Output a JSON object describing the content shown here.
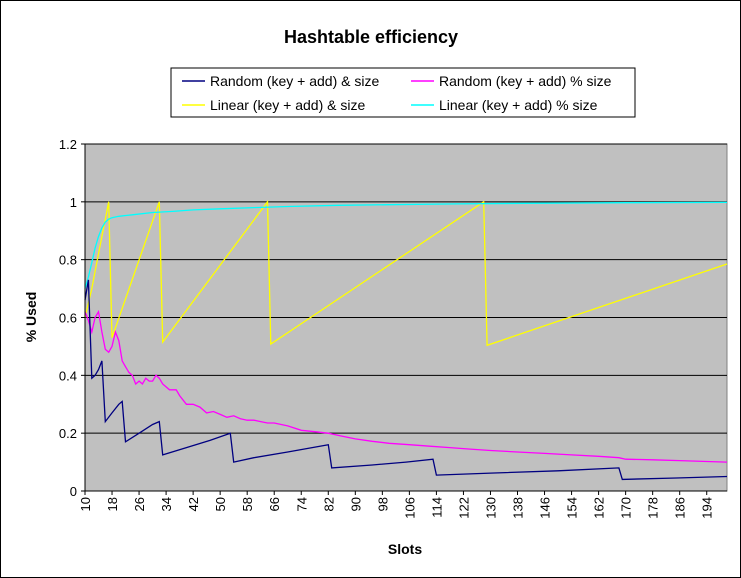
{
  "chart_data": {
    "type": "line",
    "title": "Hashtable efficiency",
    "xlabel": "Slots",
    "ylabel": "% Used",
    "ylim": [
      0,
      1.2
    ],
    "y_ticks": [
      "0",
      "0.2",
      "0.4",
      "0.6",
      "0.8",
      "1",
      "1.2"
    ],
    "x_range": [
      10,
      200
    ],
    "x_ticks": [
      "10",
      "18",
      "26",
      "34",
      "42",
      "50",
      "58",
      "66",
      "74",
      "82",
      "90",
      "98",
      "106",
      "114",
      "122",
      "130",
      "138",
      "146",
      "154",
      "162",
      "170",
      "178",
      "186",
      "194"
    ],
    "grid": "horizontal",
    "legend_position": "top",
    "plot_background": "#c0c0c0",
    "series": [
      {
        "name": "Random (key + add) & size",
        "color": "#000080",
        "points": [
          [
            10,
            0.66
          ],
          [
            11,
            0.73
          ],
          [
            12,
            0.39
          ],
          [
            13,
            0.4
          ],
          [
            14,
            0.42
          ],
          [
            15,
            0.45
          ],
          [
            16,
            0.24
          ],
          [
            18,
            0.27
          ],
          [
            20,
            0.3
          ],
          [
            21,
            0.31
          ],
          [
            22,
            0.17
          ],
          [
            26,
            0.2
          ],
          [
            30,
            0.23
          ],
          [
            32,
            0.24
          ],
          [
            33,
            0.125
          ],
          [
            40,
            0.15
          ],
          [
            47,
            0.175
          ],
          [
            53,
            0.2
          ],
          [
            54,
            0.1
          ],
          [
            60,
            0.115
          ],
          [
            70,
            0.135
          ],
          [
            82,
            0.16
          ],
          [
            83,
            0.08
          ],
          [
            95,
            0.09
          ],
          [
            105,
            0.1
          ],
          [
            113,
            0.11
          ],
          [
            114,
            0.055
          ],
          [
            130,
            0.062
          ],
          [
            150,
            0.07
          ],
          [
            168,
            0.08
          ],
          [
            169,
            0.04
          ],
          [
            185,
            0.045
          ],
          [
            200,
            0.05
          ]
        ]
      },
      {
        "name": "Random (key + add) % size",
        "color": "#ff00ff",
        "points": [
          [
            10,
            0.62
          ],
          [
            11,
            0.59
          ],
          [
            12,
            0.55
          ],
          [
            13,
            0.6
          ],
          [
            14,
            0.62
          ],
          [
            15,
            0.55
          ],
          [
            16,
            0.49
          ],
          [
            17,
            0.48
          ],
          [
            18,
            0.5
          ],
          [
            19,
            0.55
          ],
          [
            20,
            0.52
          ],
          [
            21,
            0.45
          ],
          [
            22,
            0.43
          ],
          [
            23,
            0.41
          ],
          [
            24,
            0.4
          ],
          [
            25,
            0.37
          ],
          [
            26,
            0.38
          ],
          [
            27,
            0.37
          ],
          [
            28,
            0.39
          ],
          [
            29,
            0.38
          ],
          [
            30,
            0.38
          ],
          [
            31,
            0.4
          ],
          [
            32,
            0.39
          ],
          [
            33,
            0.37
          ],
          [
            35,
            0.35
          ],
          [
            37,
            0.35
          ],
          [
            38,
            0.33
          ],
          [
            40,
            0.3
          ],
          [
            42,
            0.3
          ],
          [
            44,
            0.29
          ],
          [
            46,
            0.27
          ],
          [
            48,
            0.275
          ],
          [
            50,
            0.265
          ],
          [
            52,
            0.255
          ],
          [
            54,
            0.26
          ],
          [
            56,
            0.25
          ],
          [
            58,
            0.245
          ],
          [
            60,
            0.245
          ],
          [
            62,
            0.24
          ],
          [
            64,
            0.235
          ],
          [
            66,
            0.235
          ],
          [
            70,
            0.225
          ],
          [
            74,
            0.21
          ],
          [
            78,
            0.205
          ],
          [
            82,
            0.2
          ],
          [
            86,
            0.19
          ],
          [
            90,
            0.18
          ],
          [
            95,
            0.172
          ],
          [
            100,
            0.165
          ],
          [
            106,
            0.16
          ],
          [
            112,
            0.155
          ],
          [
            118,
            0.15
          ],
          [
            124,
            0.145
          ],
          [
            130,
            0.14
          ],
          [
            138,
            0.135
          ],
          [
            146,
            0.13
          ],
          [
            154,
            0.125
          ],
          [
            162,
            0.12
          ],
          [
            168,
            0.115
          ],
          [
            170,
            0.11
          ],
          [
            178,
            0.108
          ],
          [
            186,
            0.105
          ],
          [
            194,
            0.102
          ],
          [
            200,
            0.1
          ]
        ]
      },
      {
        "name": "Linear (key + add) & size",
        "color": "#ffff00",
        "points": [
          [
            10,
            0.6
          ],
          [
            11,
            0.65
          ],
          [
            12,
            0.7
          ],
          [
            13,
            0.76
          ],
          [
            14,
            0.82
          ],
          [
            15,
            0.88
          ],
          [
            16,
            0.94
          ],
          [
            17,
            1.0
          ],
          [
            18,
            0.53
          ],
          [
            32,
            1.0
          ],
          [
            33,
            0.515
          ],
          [
            64,
            1.0
          ],
          [
            65,
            0.508
          ],
          [
            128,
            1.0
          ],
          [
            129,
            0.504
          ],
          [
            200,
            0.785
          ]
        ]
      },
      {
        "name": "Linear (key + add) % size",
        "color": "#00ffff",
        "points": [
          [
            10,
            0.7
          ],
          [
            11,
            0.74
          ],
          [
            12,
            0.79
          ],
          [
            13,
            0.84
          ],
          [
            14,
            0.88
          ],
          [
            15,
            0.91
          ],
          [
            16,
            0.93
          ],
          [
            17,
            0.94
          ],
          [
            18,
            0.945
          ],
          [
            20,
            0.95
          ],
          [
            24,
            0.955
          ],
          [
            30,
            0.963
          ],
          [
            36,
            0.967
          ],
          [
            42,
            0.972
          ],
          [
            50,
            0.976
          ],
          [
            60,
            0.98
          ],
          [
            70,
            0.984
          ],
          [
            85,
            0.988
          ],
          [
            100,
            0.99
          ],
          [
            120,
            0.993
          ],
          [
            140,
            0.995
          ],
          [
            170,
            0.997
          ],
          [
            200,
            0.998
          ]
        ]
      }
    ]
  }
}
